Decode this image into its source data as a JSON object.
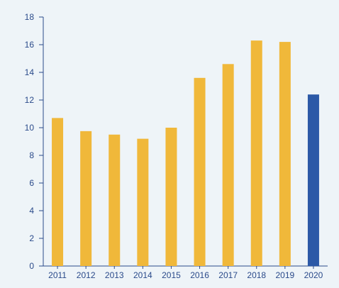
{
  "chart_data": {
    "type": "bar",
    "title": "",
    "xlabel": "",
    "ylabel": "",
    "categories": [
      "2011",
      "2012",
      "2013",
      "2014",
      "2015",
      "2016",
      "2017",
      "2018",
      "2019",
      "2020"
    ],
    "values": [
      10.7,
      9.75,
      9.5,
      9.2,
      10.0,
      13.6,
      14.6,
      16.3,
      16.2,
      12.4
    ],
    "ylim": [
      0,
      18
    ],
    "yticks": [
      "0",
      "2",
      "4",
      "6",
      "8",
      "10",
      "12",
      "14",
      "16",
      "18"
    ],
    "grid": false,
    "legend": "none",
    "colors": {
      "bar": "#f0b83a",
      "highlight": "#2c59a7",
      "axis": "#2a4a8a",
      "background": "#eef4f8"
    },
    "highlight_category": "2020"
  }
}
